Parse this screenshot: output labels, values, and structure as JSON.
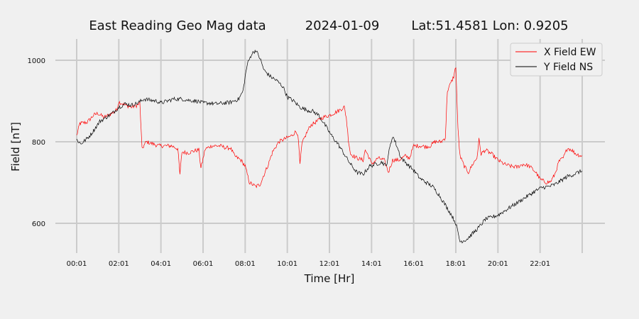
{
  "chart_data": {
    "type": "line",
    "title_parts": [
      "East Reading Geo Mag data",
      "2024-01-09",
      "Lat:51.4581  Lon: 0.9205"
    ],
    "xlabel": "Time  [Hr]",
    "ylabel": "Field  [nT]",
    "xlim": [
      0,
      24
    ],
    "ylim": [
      530,
      1050
    ],
    "x_ticks": [
      {
        "value": 0,
        "label": "00:01"
      },
      {
        "value": 2,
        "label": "02:01"
      },
      {
        "value": 4,
        "label": "04:01"
      },
      {
        "value": 6,
        "label": "06:01"
      },
      {
        "value": 8,
        "label": "08:01"
      },
      {
        "value": 10,
        "label": "10:01"
      },
      {
        "value": 12,
        "label": "12:01"
      },
      {
        "value": 14,
        "label": "14:01"
      },
      {
        "value": 16,
        "label": "16:01"
      },
      {
        "value": 18,
        "label": "18:01"
      },
      {
        "value": 20,
        "label": "20:01"
      },
      {
        "value": 22,
        "label": "22:01"
      },
      {
        "value": 24,
        "label": ""
      }
    ],
    "y_ticks": [
      600,
      800,
      1000
    ],
    "grid": true,
    "legend_position": "top-right",
    "series": [
      {
        "name": "X Field EW",
        "color": "#ff0000",
        "points": [
          [
            0.0,
            815
          ],
          [
            0.15,
            845
          ],
          [
            0.5,
            848
          ],
          [
            0.8,
            865
          ],
          [
            1.0,
            870
          ],
          [
            1.3,
            860
          ],
          [
            1.6,
            868
          ],
          [
            1.9,
            878
          ],
          [
            2.0,
            898
          ],
          [
            2.3,
            890
          ],
          [
            2.6,
            885
          ],
          [
            2.9,
            890
          ],
          [
            3.0,
            895
          ],
          [
            3.1,
            782
          ],
          [
            3.3,
            800
          ],
          [
            3.6,
            795
          ],
          [
            3.9,
            790
          ],
          [
            4.2,
            790
          ],
          [
            4.5,
            790
          ],
          [
            4.8,
            783
          ],
          [
            4.9,
            720
          ],
          [
            5.0,
            775
          ],
          [
            5.3,
            773
          ],
          [
            5.6,
            778
          ],
          [
            5.8,
            780
          ],
          [
            5.9,
            735
          ],
          [
            6.1,
            782
          ],
          [
            6.4,
            790
          ],
          [
            6.8,
            790
          ],
          [
            7.1,
            785
          ],
          [
            7.3,
            785
          ],
          [
            7.5,
            765
          ],
          [
            7.8,
            755
          ],
          [
            8.0,
            740
          ],
          [
            8.2,
            700
          ],
          [
            8.5,
            690
          ],
          [
            8.7,
            695
          ],
          [
            8.9,
            720
          ],
          [
            9.1,
            745
          ],
          [
            9.3,
            775
          ],
          [
            9.6,
            800
          ],
          [
            10.0,
            810
          ],
          [
            10.2,
            815
          ],
          [
            10.4,
            825
          ],
          [
            10.5,
            820
          ],
          [
            10.6,
            745
          ],
          [
            10.7,
            795
          ],
          [
            10.9,
            820
          ],
          [
            11.1,
            840
          ],
          [
            11.4,
            850
          ],
          [
            11.7,
            860
          ],
          [
            12.0,
            865
          ],
          [
            12.4,
            875
          ],
          [
            12.7,
            885
          ],
          [
            12.8,
            860
          ],
          [
            12.9,
            805
          ],
          [
            13.0,
            770
          ],
          [
            13.3,
            760
          ],
          [
            13.6,
            755
          ],
          [
            13.7,
            780
          ],
          [
            13.9,
            760
          ],
          [
            14.0,
            745
          ],
          [
            14.3,
            760
          ],
          [
            14.6,
            755
          ],
          [
            14.8,
            725
          ],
          [
            15.0,
            755
          ],
          [
            15.3,
            755
          ],
          [
            15.6,
            765
          ],
          [
            15.8,
            760
          ],
          [
            16.0,
            790
          ],
          [
            16.3,
            790
          ],
          [
            16.6,
            788
          ],
          [
            16.8,
            790
          ],
          [
            17.0,
            800
          ],
          [
            17.3,
            800
          ],
          [
            17.5,
            810
          ],
          [
            17.6,
            925
          ],
          [
            17.9,
            960
          ],
          [
            18.0,
            985
          ],
          [
            18.1,
            830
          ],
          [
            18.2,
            765
          ],
          [
            18.4,
            740
          ],
          [
            18.6,
            725
          ],
          [
            18.8,
            745
          ],
          [
            19.0,
            760
          ],
          [
            19.1,
            805
          ],
          [
            19.2,
            770
          ],
          [
            19.4,
            780
          ],
          [
            19.7,
            770
          ],
          [
            20.0,
            755
          ],
          [
            20.3,
            745
          ],
          [
            20.6,
            740
          ],
          [
            20.9,
            738
          ],
          [
            21.2,
            745
          ],
          [
            21.5,
            740
          ],
          [
            21.8,
            725
          ],
          [
            22.0,
            708
          ],
          [
            22.3,
            700
          ],
          [
            22.5,
            702
          ],
          [
            22.7,
            720
          ],
          [
            22.9,
            752
          ],
          [
            23.1,
            760
          ],
          [
            23.3,
            785
          ],
          [
            23.5,
            780
          ],
          [
            23.7,
            770
          ],
          [
            24.0,
            765
          ]
        ]
      },
      {
        "name": "Y Field NS",
        "color": "#000000",
        "points": [
          [
            0.0,
            805
          ],
          [
            0.2,
            795
          ],
          [
            0.5,
            808
          ],
          [
            0.7,
            820
          ],
          [
            0.9,
            835
          ],
          [
            1.1,
            850
          ],
          [
            1.4,
            860
          ],
          [
            1.7,
            870
          ],
          [
            2.0,
            885
          ],
          [
            2.3,
            893
          ],
          [
            2.6,
            890
          ],
          [
            2.9,
            895
          ],
          [
            3.2,
            905
          ],
          [
            3.5,
            902
          ],
          [
            3.8,
            900
          ],
          [
            4.0,
            895
          ],
          [
            4.3,
            900
          ],
          [
            4.6,
            905
          ],
          [
            5.0,
            905
          ],
          [
            5.3,
            902
          ],
          [
            5.7,
            900
          ],
          [
            6.0,
            895
          ],
          [
            6.3,
            895
          ],
          [
            6.6,
            893
          ],
          [
            7.0,
            895
          ],
          [
            7.3,
            897
          ],
          [
            7.7,
            905
          ],
          [
            7.9,
            925
          ],
          [
            8.0,
            960
          ],
          [
            8.1,
            990
          ],
          [
            8.3,
            1015
          ],
          [
            8.5,
            1025
          ],
          [
            8.7,
            1005
          ],
          [
            8.9,
            975
          ],
          [
            9.2,
            960
          ],
          [
            9.5,
            950
          ],
          [
            9.8,
            935
          ],
          [
            10.0,
            910
          ],
          [
            10.3,
            900
          ],
          [
            10.6,
            885
          ],
          [
            10.9,
            878
          ],
          [
            11.2,
            875
          ],
          [
            11.5,
            865
          ],
          [
            11.8,
            840
          ],
          [
            12.1,
            815
          ],
          [
            12.4,
            795
          ],
          [
            12.7,
            770
          ],
          [
            13.0,
            745
          ],
          [
            13.3,
            725
          ],
          [
            13.6,
            720
          ],
          [
            13.9,
            740
          ],
          [
            14.2,
            745
          ],
          [
            14.5,
            750
          ],
          [
            14.7,
            740
          ],
          [
            14.8,
            770
          ],
          [
            15.0,
            815
          ],
          [
            15.2,
            790
          ],
          [
            15.4,
            760
          ],
          [
            15.7,
            745
          ],
          [
            16.0,
            730
          ],
          [
            16.3,
            710
          ],
          [
            16.6,
            700
          ],
          [
            16.9,
            690
          ],
          [
            17.2,
            670
          ],
          [
            17.5,
            645
          ],
          [
            17.8,
            620
          ],
          [
            18.0,
            600
          ],
          [
            18.2,
            555
          ],
          [
            18.5,
            560
          ],
          [
            18.8,
            575
          ],
          [
            19.1,
            590
          ],
          [
            19.4,
            610
          ],
          [
            19.7,
            615
          ],
          [
            20.0,
            620
          ],
          [
            20.3,
            630
          ],
          [
            20.6,
            640
          ],
          [
            20.9,
            650
          ],
          [
            21.2,
            660
          ],
          [
            21.5,
            670
          ],
          [
            21.8,
            680
          ],
          [
            22.1,
            688
          ],
          [
            22.4,
            690
          ],
          [
            22.7,
            695
          ],
          [
            23.0,
            705
          ],
          [
            23.3,
            715
          ],
          [
            23.6,
            720
          ],
          [
            23.8,
            725
          ],
          [
            24.0,
            728
          ]
        ]
      }
    ]
  }
}
